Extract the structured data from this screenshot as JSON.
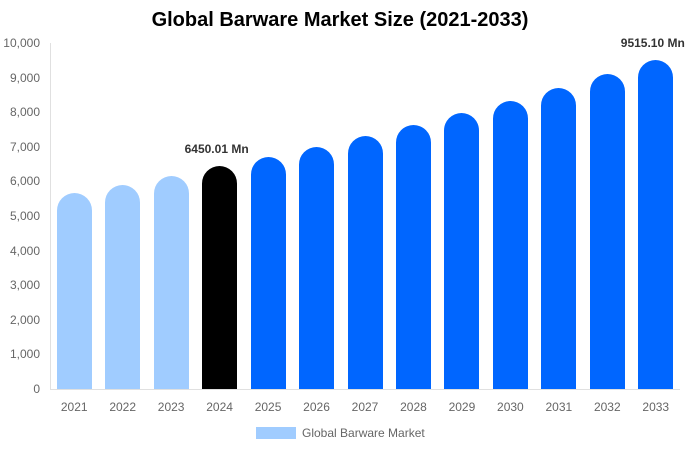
{
  "chart_data": {
    "type": "bar",
    "title": "Global Barware Market Size (2021-2033)",
    "xlabel": "",
    "ylabel": "",
    "ylim": [
      0,
      10000
    ],
    "yticks": [
      "0",
      "1,000",
      "2,000",
      "3,000",
      "4,000",
      "5,000",
      "6,000",
      "7,000",
      "8,000",
      "9,000",
      "10,000"
    ],
    "grid": false,
    "legend_position": "bottom",
    "categories": [
      "2021",
      "2022",
      "2023",
      "2024",
      "2025",
      "2026",
      "2027",
      "2028",
      "2029",
      "2030",
      "2031",
      "2032",
      "2033"
    ],
    "series": [
      {
        "name": "Global Barware Market",
        "values": [
          5660,
          5900,
          6160,
          6450.01,
          6700,
          6990,
          7310,
          7630,
          7980,
          8320,
          8700,
          9100,
          9515.1
        ]
      }
    ],
    "bar_colors": [
      "#A0CCFF",
      "#A0CCFF",
      "#A0CCFF",
      "#000000",
      "#0066FF",
      "#0066FF",
      "#0066FF",
      "#0066FF",
      "#0066FF",
      "#0066FF",
      "#0066FF",
      "#0066FF",
      "#0066FF"
    ],
    "annotations": [
      {
        "category": "2024",
        "text": "6450.01 Mn"
      },
      {
        "category": "2033",
        "text": "9515.10 Mn"
      }
    ]
  },
  "legend": {
    "label": "Global Barware Market",
    "color": "#A0CCFF"
  },
  "colors": {
    "historical": "#A0CCFF",
    "base_year": "#000000",
    "forecast": "#0066FF"
  }
}
